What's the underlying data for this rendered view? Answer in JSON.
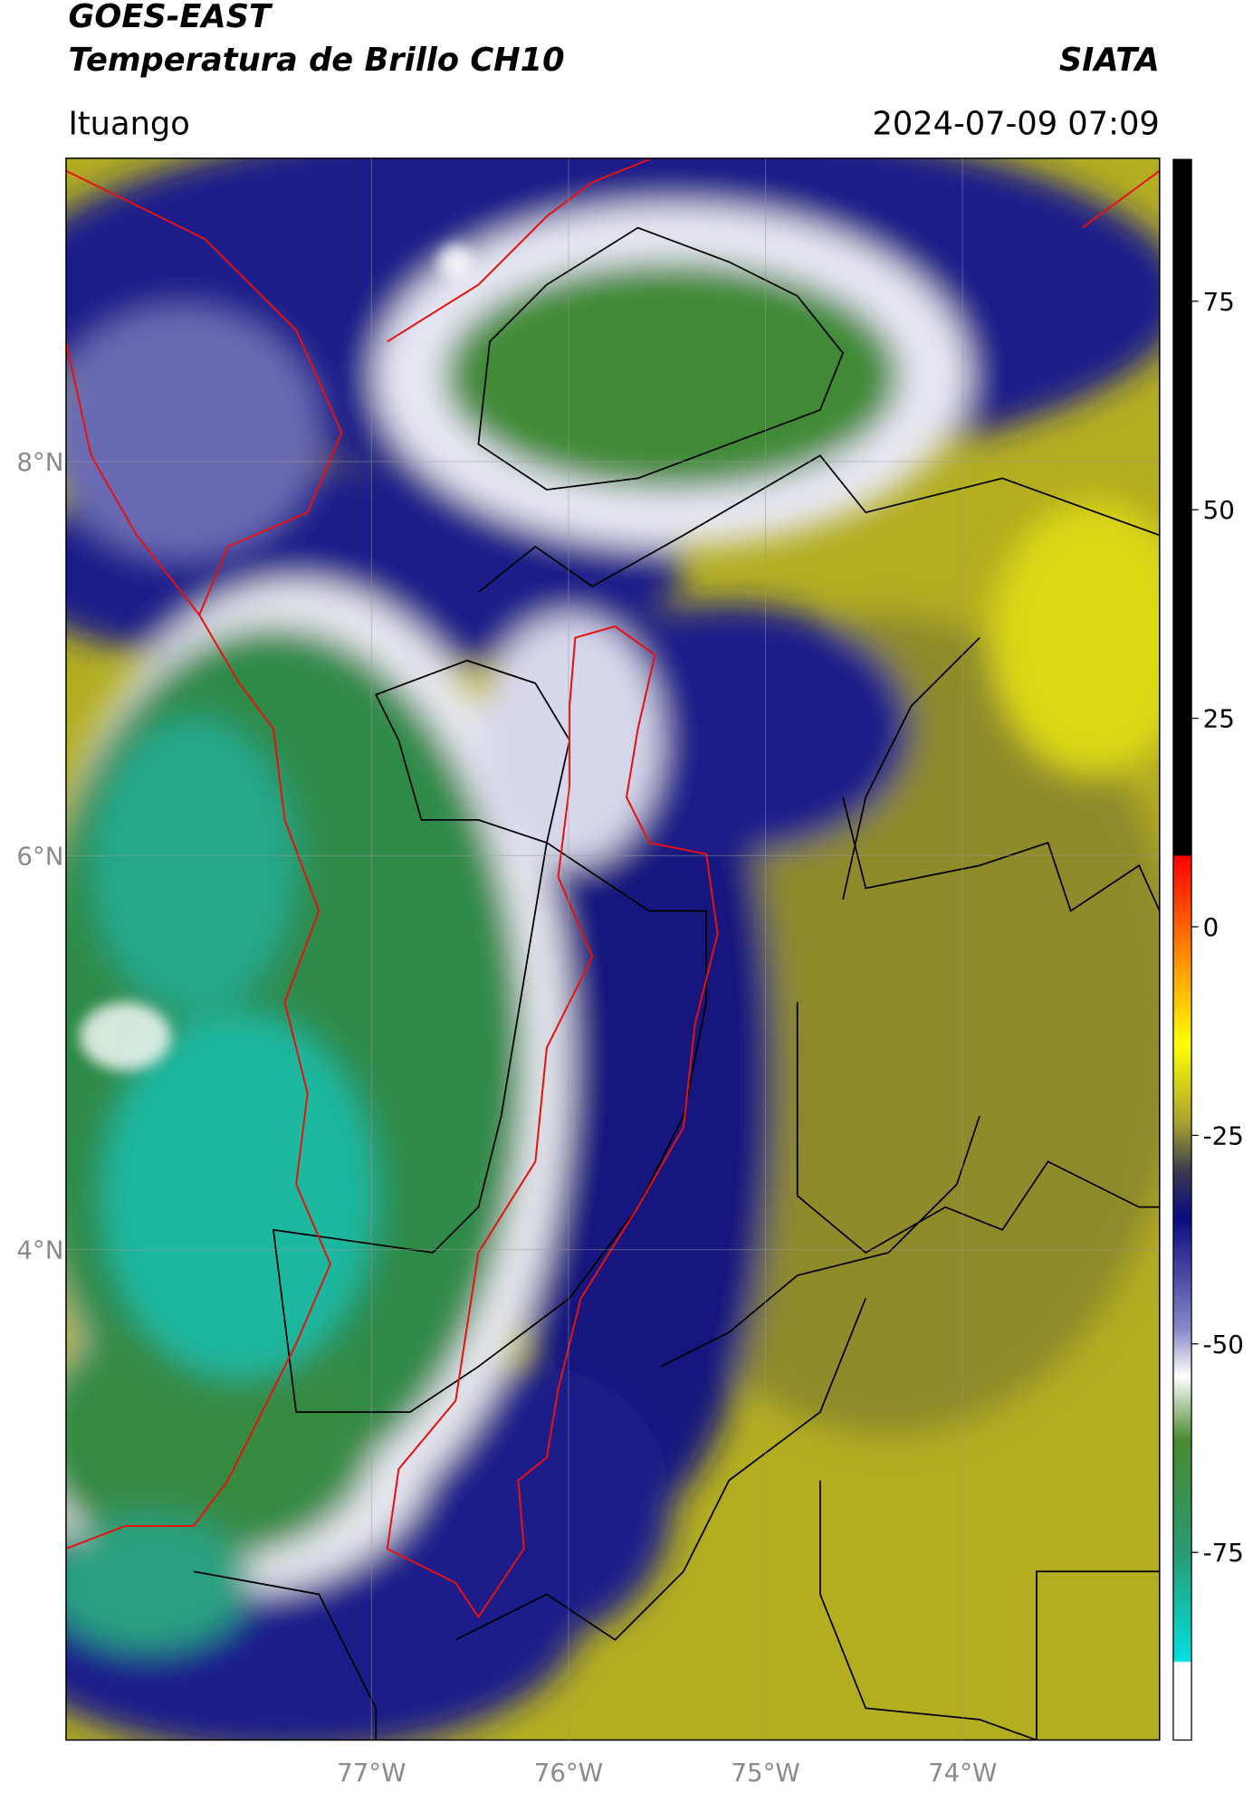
{
  "header": {
    "title": "GOES-EAST",
    "subtitle": "Temperatura de Brillo CH10",
    "brand": "SIATA",
    "location": "Ituango",
    "datetime": "2024-07-09 07:09"
  },
  "map": {
    "xlim": [
      -78.55,
      -73.0
    ],
    "ylim": [
      1.51,
      9.54
    ],
    "xticks": [
      {
        "value": -77,
        "label": "77°W"
      },
      {
        "value": -76,
        "label": "76°W"
      },
      {
        "value": -75,
        "label": "75°W"
      },
      {
        "value": -74,
        "label": "74°W"
      }
    ],
    "yticks": [
      {
        "value": 4,
        "label": "4°N"
      },
      {
        "value": 6,
        "label": "6°N"
      },
      {
        "value": 8,
        "label": "8°N"
      }
    ],
    "grid": true
  },
  "colorbar": {
    "clim": [
      -97.5,
      92
    ],
    "ticks": [
      -75,
      -50,
      -25,
      0,
      25,
      50,
      75
    ]
  }
}
